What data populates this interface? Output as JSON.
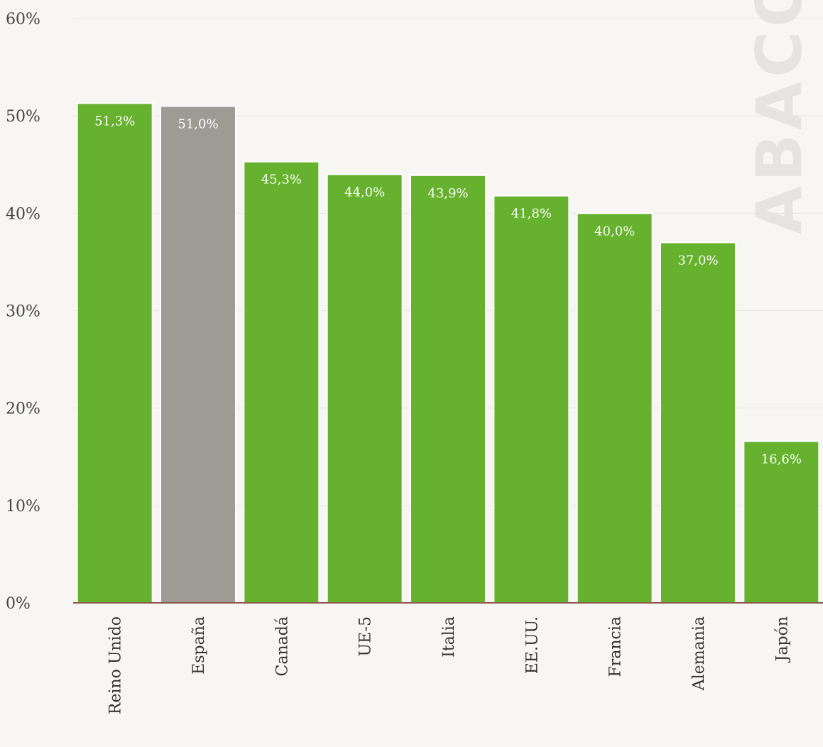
{
  "watermark": "ABACO",
  "chart_data": {
    "type": "bar",
    "title": "",
    "xlabel": "",
    "ylabel": "",
    "ylim": [
      0,
      60
    ],
    "yticks": [
      "0%",
      "10%",
      "20%",
      "30%",
      "40%",
      "50%",
      "60%"
    ],
    "grid": true,
    "categories": [
      "Reino Unido",
      "España",
      "Canadá",
      "UE-5",
      "Italia",
      "EE.UU.",
      "Francia",
      "Alemania",
      "Japón"
    ],
    "values": [
      51.3,
      51.0,
      45.3,
      44.0,
      43.9,
      41.8,
      40.0,
      37.0,
      16.6
    ],
    "value_labels": [
      "51,3%",
      "51,0%",
      "45,3%",
      "44,0%",
      "43,9%",
      "41,8%",
      "40,0%",
      "37,0%",
      "16,6%"
    ],
    "colors": {
      "default": "#66b22e",
      "highlight": "#9e9b95",
      "highlight_category": "España"
    }
  }
}
